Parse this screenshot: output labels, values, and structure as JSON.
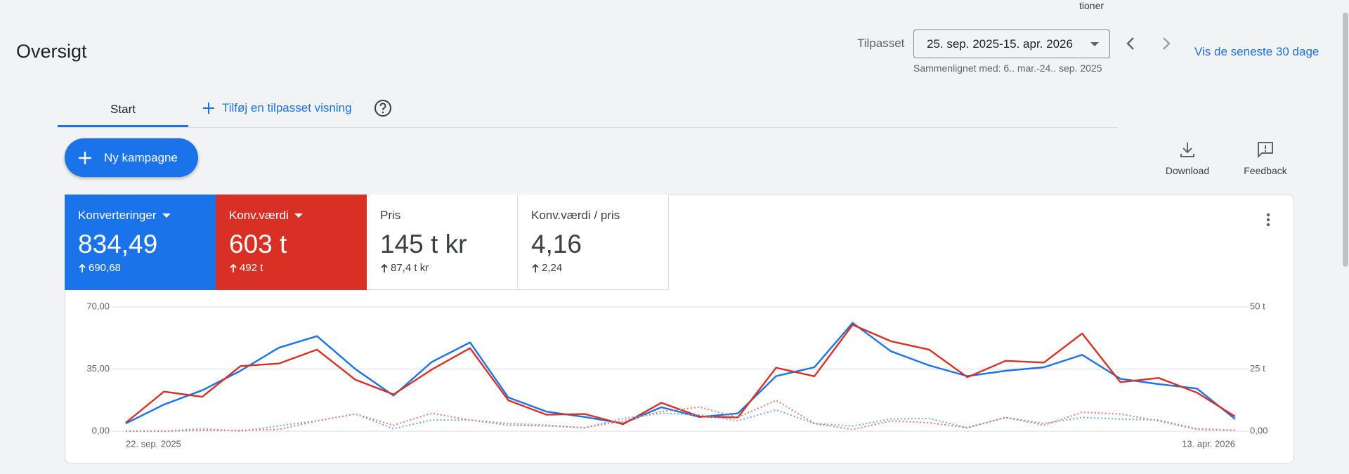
{
  "header": {
    "clipped_text": "tioner",
    "title": "Oversigt"
  },
  "toolbar": {
    "range_label": "Tilpasset",
    "date_range": "25. sep. 2025-15. apr. 2026",
    "comparison": "Sammenlignet med: 6.. mar.-24.. sep. 2025",
    "recent_link": "Vis de seneste 30 dage"
  },
  "tabs": {
    "active": "Start",
    "add_view": "Tilføj en tilpasset visning"
  },
  "new_campaign": "Ny kampagne",
  "actions": {
    "download": "Download",
    "feedback": "Feedback"
  },
  "metrics": [
    {
      "label": "Konverteringer",
      "value": "834,49",
      "change": "690,68"
    },
    {
      "label": "Konv.værdi",
      "value": "603 t",
      "change": "492 t"
    },
    {
      "label": "Pris",
      "value": "145 t kr",
      "change": "87,4 t kr"
    },
    {
      "label": "Konv.værdi / pris",
      "value": "4,16",
      "change": "2,24"
    }
  ],
  "chart_data": {
    "type": "line",
    "categories": [
      "22. sep. 2025",
      null,
      null,
      null,
      null,
      null,
      null,
      null,
      null,
      null,
      null,
      null,
      null,
      null,
      null,
      null,
      null,
      null,
      null,
      null,
      null,
      null,
      null,
      null,
      null,
      null,
      null,
      null,
      null,
      "13. apr. 2026"
    ],
    "series": [
      {
        "color": "#1a73e8",
        "axis": "y",
        "style": "solid",
        "values": [
          4.3,
          15,
          23,
          34,
          47,
          53.5,
          35,
          20,
          39,
          50,
          19,
          11,
          8,
          4.3,
          13.5,
          8,
          10,
          31,
          36,
          61,
          45,
          37,
          31,
          34,
          36,
          43,
          29.5,
          26.5,
          24,
          6.8
        ]
      },
      {
        "color": "#d93025",
        "axis": "y2",
        "style": "solid",
        "values": [
          3.4,
          15.9,
          13.8,
          26.2,
          27.2,
          32.8,
          20.7,
          14.8,
          24.8,
          33.4,
          12.4,
          6.6,
          6.9,
          2.8,
          11.4,
          5.9,
          5.5,
          25.5,
          22.1,
          42.8,
          36.2,
          32.8,
          21.7,
          28.3,
          27.6,
          39.3,
          19.7,
          21.4,
          15.5,
          5.9
        ]
      },
      {
        "color": "#6fa8f5",
        "axis": "y",
        "style": "dotted",
        "values": [
          0,
          0,
          1.4,
          0,
          3,
          5.8,
          9.7,
          1.4,
          6.3,
          6.3,
          4.3,
          3.4,
          1.9,
          7.2,
          10,
          9.2,
          5.8,
          12,
          4.3,
          2.9,
          6.8,
          7.2,
          1.9,
          7.7,
          4.3,
          7.7,
          6.8,
          6.3,
          1.4,
          0.5
        ]
      },
      {
        "color": "#ea7a70",
        "axis": "y2",
        "style": "dotted",
        "values": [
          0,
          0,
          0.3,
          0.3,
          0.7,
          4.1,
          6.9,
          2.4,
          7.2,
          4.5,
          2.4,
          2.1,
          1.4,
          4.1,
          7.9,
          9.7,
          5.5,
          12.4,
          3.1,
          0.7,
          4.1,
          3.4,
          1.4,
          5.5,
          2.4,
          7.6,
          6.9,
          4.1,
          0.7,
          0.3
        ]
      }
    ],
    "ylim": [
      0,
      70
    ],
    "yticks": [
      {
        "value": 0,
        "label": "0,00"
      },
      {
        "value": 35,
        "label": "35,00"
      },
      {
        "value": 70,
        "label": "70,00"
      }
    ],
    "y2lim": [
      0,
      50
    ],
    "y2ticks": [
      {
        "value": 0,
        "label": "0,00"
      },
      {
        "value": 25,
        "label": "25 t"
      },
      {
        "value": 50,
        "label": "50 t"
      }
    ],
    "grid": true
  }
}
